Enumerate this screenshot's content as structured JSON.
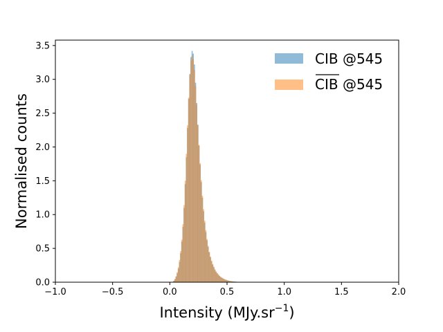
{
  "chart_data": {
    "type": "histogram",
    "xlabel": "Intensity (MJy.sr",
    "xlabel_superscript": "−1",
    "xlabel_suffix": ")",
    "ylabel": "Normalised counts",
    "xlim": [
      -1.0,
      2.0
    ],
    "ylim": [
      0.0,
      3.58
    ],
    "x_ticks": [
      "−1.0",
      "−0.5",
      "0.0",
      "0.5",
      "1.0",
      "1.5",
      "2.0"
    ],
    "x_tick_values": [
      -1.0,
      -0.5,
      0.0,
      0.5,
      1.0,
      1.5,
      2.0
    ],
    "y_ticks": [
      "0.0",
      "0.5",
      "1.0",
      "1.5",
      "2.0",
      "2.5",
      "3.0",
      "3.5"
    ],
    "y_tick_values": [
      0.0,
      0.5,
      1.0,
      1.5,
      2.0,
      2.5,
      3.0,
      3.5
    ],
    "legend_position": "top-right",
    "bin_width": 0.01,
    "series": [
      {
        "name": "CIB @545",
        "color": "#1f77b4",
        "alpha": 0.5,
        "bin_starts": [
          0.03,
          0.04,
          0.05,
          0.06,
          0.07,
          0.08,
          0.09,
          0.1,
          0.11,
          0.12,
          0.13,
          0.14,
          0.15,
          0.16,
          0.17,
          0.18,
          0.19,
          0.2,
          0.21,
          0.22,
          0.23,
          0.24,
          0.25,
          0.26,
          0.27,
          0.28,
          0.29,
          0.3,
          0.31,
          0.32,
          0.33,
          0.34,
          0.35,
          0.36,
          0.37,
          0.38,
          0.39,
          0.4,
          0.41,
          0.42,
          0.43,
          0.44,
          0.45,
          0.46,
          0.47,
          0.48,
          0.49,
          0.5,
          0.51,
          0.52,
          0.53,
          0.54,
          0.55,
          0.56,
          0.57,
          0.58,
          0.59,
          0.6,
          0.61,
          0.62,
          0.63,
          0.64,
          0.65,
          0.66,
          0.67,
          0.68,
          0.69,
          0.7,
          0.71,
          0.72,
          0.73,
          0.74,
          0.75,
          0.76,
          0.77,
          0.78,
          0.79,
          0.8,
          0.81,
          0.82,
          0.83,
          0.84,
          0.85,
          0.86,
          0.87,
          0.88,
          0.89,
          0.9,
          0.91,
          0.92,
          0.93,
          0.94,
          0.95,
          0.96,
          0.97,
          0.98
        ],
        "values": [
          0.02,
          0.04,
          0.08,
          0.13,
          0.2,
          0.3,
          0.43,
          0.6,
          0.82,
          1.1,
          1.45,
          1.85,
          2.28,
          2.71,
          3.08,
          3.33,
          3.42,
          3.38,
          3.22,
          2.95,
          2.65,
          2.33,
          2.02,
          1.74,
          1.48,
          1.25,
          1.05,
          0.88,
          0.74,
          0.62,
          0.52,
          0.44,
          0.37,
          0.31,
          0.26,
          0.22,
          0.18,
          0.15,
          0.13,
          0.11,
          0.09,
          0.075,
          0.065,
          0.055,
          0.045,
          0.038,
          0.032,
          0.027,
          0.022,
          0.018,
          0.015,
          0.013,
          0.011,
          0.009,
          0.007,
          0.006,
          0.005,
          0.004,
          0.003,
          0.003,
          0.002,
          0.002,
          0.001,
          0.001,
          0.001,
          0.001,
          0.001,
          0.001,
          0.001,
          0.001,
          0.001,
          0.001,
          0.001,
          0.001,
          0.001,
          0.001,
          0.001,
          0.001,
          0.001,
          0.001,
          0.001,
          0.001,
          0.001,
          0.001,
          0.001,
          0.001,
          0.001,
          0.001,
          0.001,
          0.001,
          0.001,
          0.001,
          0.001,
          0.001,
          0.001,
          0.001
        ]
      },
      {
        "name": "CIB @545",
        "name_overline": true,
        "color": "#ff7f0e",
        "alpha": 0.5,
        "bin_starts": [
          0.03,
          0.04,
          0.05,
          0.06,
          0.07,
          0.08,
          0.09,
          0.1,
          0.11,
          0.12,
          0.13,
          0.14,
          0.15,
          0.16,
          0.17,
          0.18,
          0.19,
          0.2,
          0.21,
          0.22,
          0.23,
          0.24,
          0.25,
          0.26,
          0.27,
          0.28,
          0.29,
          0.3,
          0.31,
          0.32,
          0.33,
          0.34,
          0.35,
          0.36,
          0.37,
          0.38,
          0.39,
          0.4,
          0.41,
          0.42,
          0.43,
          0.44,
          0.45,
          0.46,
          0.47,
          0.48,
          0.49,
          0.5,
          0.51,
          0.52,
          0.53,
          0.54,
          0.55,
          0.56,
          0.57,
          0.58,
          0.59,
          0.6,
          0.61,
          0.62,
          0.63,
          0.64,
          0.65,
          0.66,
          0.67,
          0.68,
          0.69,
          0.7,
          0.71,
          0.72,
          0.73,
          0.74,
          0.75,
          0.76,
          0.77,
          0.78,
          0.79,
          0.8,
          0.81,
          0.82,
          0.83,
          0.84,
          0.85,
          0.86,
          0.87,
          0.88,
          0.89,
          0.9,
          0.91,
          0.92,
          0.93,
          0.94,
          0.95,
          0.96,
          0.97,
          0.98
        ],
        "values": [
          0.02,
          0.05,
          0.09,
          0.15,
          0.22,
          0.33,
          0.46,
          0.63,
          0.86,
          1.14,
          1.5,
          1.9,
          2.32,
          2.73,
          3.06,
          3.28,
          3.35,
          3.3,
          3.14,
          2.9,
          2.62,
          2.32,
          2.03,
          1.76,
          1.51,
          1.28,
          1.08,
          0.91,
          0.77,
          0.64,
          0.54,
          0.45,
          0.38,
          0.32,
          0.27,
          0.23,
          0.19,
          0.16,
          0.135,
          0.115,
          0.095,
          0.08,
          0.068,
          0.057,
          0.048,
          0.04,
          0.034,
          0.028,
          0.023,
          0.019,
          0.016,
          0.013,
          0.011,
          0.009,
          0.008,
          0.006,
          0.005,
          0.004,
          0.004,
          0.003,
          0.002,
          0.002,
          0.002,
          0.001,
          0.001,
          0.001,
          0.001,
          0.001,
          0.001,
          0.001,
          0.001,
          0.001,
          0.001,
          0.001,
          0.001,
          0.001,
          0.001,
          0.001,
          0.001,
          0.001,
          0.001,
          0.001,
          0.001,
          0.001,
          0.001,
          0.001,
          0.001,
          0.001,
          0.001,
          0.001,
          0.001,
          0.001,
          0.001,
          0.001,
          0.001,
          0.001
        ]
      }
    ]
  }
}
